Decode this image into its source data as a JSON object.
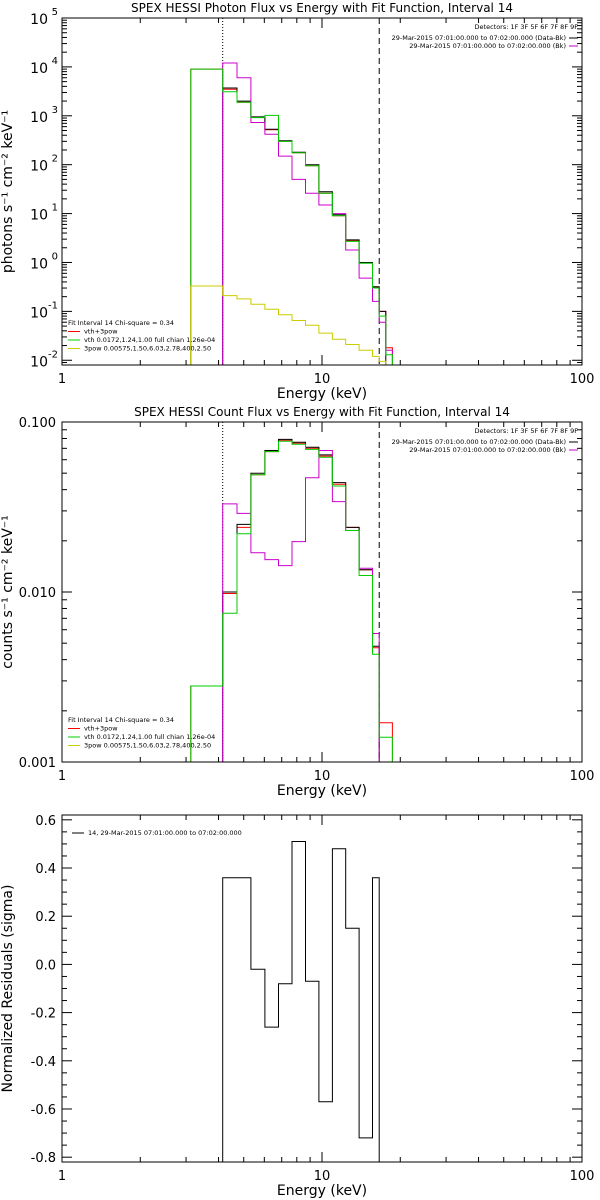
{
  "chart_data": [
    {
      "type": "line",
      "title": "SPEX HESSI Photon Flux vs Energy with Fit Function, Interval 14",
      "xlabel": "Energy (keV)",
      "ylabel": "photons s⁻¹ cm⁻² keV⁻¹",
      "xscale": "log",
      "yscale": "log",
      "xlim": [
        1,
        100
      ],
      "ylim": [
        0.008,
        100000
      ],
      "xticks": [
        {
          "v": 1,
          "t": "1"
        },
        {
          "v": 10,
          "t": "10"
        },
        {
          "v": 100,
          "t": "100"
        }
      ],
      "yticks": [
        {
          "v": 0.01,
          "base": "10",
          "exp": "-2"
        },
        {
          "v": 0.1,
          "base": "10",
          "exp": "-1"
        },
        {
          "v": 1,
          "base": "10",
          "exp": "0"
        },
        {
          "v": 10,
          "base": "10",
          "exp": "1"
        },
        {
          "v": 100,
          "base": "10",
          "exp": "2"
        },
        {
          "v": 1000,
          "base": "10",
          "exp": "3"
        },
        {
          "v": 10000,
          "base": "10",
          "exp": "4"
        },
        {
          "v": 100000,
          "base": "10",
          "exp": "5"
        }
      ],
      "vlines": [
        {
          "x": 4.15,
          "style": "dotted"
        },
        {
          "x": 16.6,
          "style": "dashed"
        }
      ],
      "detectors": "Detectors: 1F 3F 5F 6F 7F 8F 9F",
      "top_legend": [
        {
          "text": "29-Mar-2015 07:01:00.000 to 07:02:00.000 (Data-Bk)",
          "color": "#000000"
        },
        {
          "text": "29-Mar-2015 07:01:00.000 to 07:02:00.000 (Bk)",
          "color": "#cc00cc"
        }
      ],
      "fit_legend": [
        {
          "text": "Fit Interval 14   Chi-square = 0.34",
          "color": null
        },
        {
          "text": "vth+3pow",
          "color": "#ff0000"
        },
        {
          "text": "vth 0.0172,1.24,1.00   full chian 1.26e-04",
          "color": "#00cc00"
        },
        {
          "text": "3pow 0.00575,1.50,6.03,2.78,400,2.50",
          "color": "#cccc00"
        }
      ],
      "edges": [
        3.13,
        3.67,
        4.15,
        4.71,
        5.33,
        6.03,
        6.8,
        7.67,
        8.64,
        9.73,
        10.96,
        12.34,
        13.89,
        15.64,
        16.6,
        17.6,
        18.65
      ],
      "series": [
        {
          "name": "vth+3pow",
          "color": "#ff0000",
          "values": [
            9000,
            9000,
            3500,
            1900,
            930,
            520,
            300,
            175,
            95,
            26,
            9,
            2.8,
            0.99,
            0.31,
            0.1,
            0.018,
            null
          ]
        },
        {
          "name": "Data-Bk",
          "color": "#000000",
          "values": [
            null,
            null,
            3700,
            2000,
            950,
            530,
            310,
            180,
            100,
            28,
            9.5,
            2.9,
            1.0,
            0.32,
            0.1,
            null,
            null
          ]
        },
        {
          "name": "Bk",
          "color": "#cc00cc",
          "values": [
            null,
            null,
            12000,
            6000,
            730,
            420,
            150,
            50,
            26,
            15,
            10,
            1.8,
            0.48,
            0.16,
            0.06,
            0.016,
            null
          ]
        },
        {
          "name": "vth",
          "color": "#00cc00",
          "values": [
            9000,
            9000,
            3100,
            1900,
            920,
            1020,
            300,
            175,
            95,
            26,
            9,
            2.7,
            0.96,
            0.3,
            0.08,
            0.013,
            null
          ]
        },
        {
          "name": "3pow",
          "color": "#cccc00",
          "values": [
            0.33,
            0.33,
            0.21,
            0.18,
            0.14,
            0.11,
            0.085,
            0.065,
            0.052,
            0.036,
            0.027,
            0.021,
            0.016,
            0.012,
            0.0095,
            null,
            null
          ]
        }
      ]
    },
    {
      "type": "line",
      "title": "SPEX HESSI Count Flux vs Energy with Fit Function, Interval 14",
      "xlabel": "Energy (keV)",
      "ylabel": "counts s⁻¹ cm⁻² keV⁻¹",
      "xscale": "log",
      "yscale": "log",
      "xlim": [
        1,
        100
      ],
      "ylim": [
        0.001,
        0.1
      ],
      "xticks": [
        {
          "v": 1,
          "t": "1"
        },
        {
          "v": 10,
          "t": "10"
        },
        {
          "v": 100,
          "t": "100"
        }
      ],
      "yticks": [
        {
          "v": 0.001,
          "t": "0.001"
        },
        {
          "v": 0.01,
          "t": "0.010"
        },
        {
          "v": 0.1,
          "t": "0.100"
        }
      ],
      "vlines": [
        {
          "x": 4.15,
          "style": "dotted"
        },
        {
          "x": 16.6,
          "style": "dashed"
        }
      ],
      "detectors": "Detectors: 1F 3F 5F 6F 7F 8F 9F",
      "top_legend": [
        {
          "text": "29-Mar-2015 07:01:00.000 to 07:02:00.000 (Data-Bk)",
          "color": "#000000"
        },
        {
          "text": "29-Mar-2015 07:01:00.000 to 07:02:00.000 (Bk)",
          "color": "#cc00cc"
        }
      ],
      "fit_legend": [
        {
          "text": "Fit Interval 14   Chi-square = 0.34",
          "color": null
        },
        {
          "text": "vth+3pow",
          "color": "#ff0000"
        },
        {
          "text": "vth 0.0172,1.24,1.00   full chian 1.26e-04",
          "color": "#00cc00"
        },
        {
          "text": "3pow 0.00575,1.50,6.03,2.78,400,2.50",
          "color": "#cccc00"
        }
      ],
      "edges": [
        3.13,
        3.67,
        4.15,
        4.71,
        5.33,
        6.03,
        6.8,
        7.67,
        8.64,
        9.73,
        10.96,
        12.34,
        13.89,
        15.64,
        16.6,
        17.6,
        18.65
      ],
      "series": [
        {
          "name": "vth+3pow",
          "color": "#ff0000",
          "values": [
            0.0028,
            0.0028,
            0.0098,
            0.024,
            0.049,
            0.067,
            0.078,
            0.075,
            0.07,
            0.063,
            0.043,
            0.024,
            0.0135,
            0.0047,
            0.0017,
            0.0017,
            null
          ]
        },
        {
          "name": "Data-Bk",
          "color": "#000000",
          "values": [
            null,
            null,
            0.01,
            0.025,
            0.05,
            0.068,
            0.079,
            0.076,
            0.071,
            0.064,
            0.044,
            0.024,
            0.0135,
            0.0048,
            null,
            null,
            null
          ]
        },
        {
          "name": "Bk",
          "color": "#cc00cc",
          "values": [
            null,
            null,
            0.033,
            0.029,
            0.017,
            0.0155,
            0.0143,
            0.0198,
            0.047,
            0.068,
            0.034,
            0.023,
            0.0138,
            0.0057,
            0.0008,
            null,
            null
          ]
        },
        {
          "name": "vth",
          "color": "#00cc00",
          "values": [
            0.0028,
            0.0028,
            0.0075,
            0.022,
            0.049,
            0.067,
            0.077,
            0.074,
            0.069,
            0.062,
            0.042,
            0.023,
            0.0125,
            0.0043,
            0.0014,
            0.0014,
            null
          ]
        }
      ]
    },
    {
      "type": "line",
      "title": "",
      "xlabel": "Energy (keV)",
      "ylabel": "Normalized Residuals (sigma)",
      "xscale": "log",
      "yscale": "linear",
      "xlim": [
        1,
        100
      ],
      "ylim": [
        -0.82,
        0.62
      ],
      "xticks": [
        {
          "v": 1,
          "t": "1"
        },
        {
          "v": 10,
          "t": "10"
        },
        {
          "v": 100,
          "t": "100"
        }
      ],
      "yticks": [
        {
          "v": 0.6,
          "t": "0.6"
        },
        {
          "v": 0.4,
          "t": "0.4"
        },
        {
          "v": 0.2,
          "t": "0.2"
        },
        {
          "v": 0.0,
          "t": "0.0"
        },
        {
          "v": -0.2,
          "t": "-0.2"
        },
        {
          "v": -0.4,
          "t": "-0.4"
        },
        {
          "v": -0.6,
          "t": "-0.6"
        },
        {
          "v": -0.8,
          "t": "-0.8"
        }
      ],
      "legend": [
        {
          "text": "14, 29-Mar-2015 07:01:00.000 to 07:02:00.000",
          "color": "#000000"
        }
      ],
      "edges": [
        4.15,
        5.33,
        6.03,
        6.8,
        7.67,
        8.64,
        9.73,
        10.96,
        12.34,
        13.89,
        15.64,
        16.6
      ],
      "series": [
        {
          "name": "14, 29-Mar-2015 07:01:00.000 to 07:02:00.000",
          "color": "#000000",
          "values": [
            0.36,
            -0.02,
            -0.26,
            -0.08,
            0.51,
            -0.07,
            -0.57,
            0.48,
            0.15,
            -0.72,
            0.36
          ]
        }
      ]
    }
  ]
}
